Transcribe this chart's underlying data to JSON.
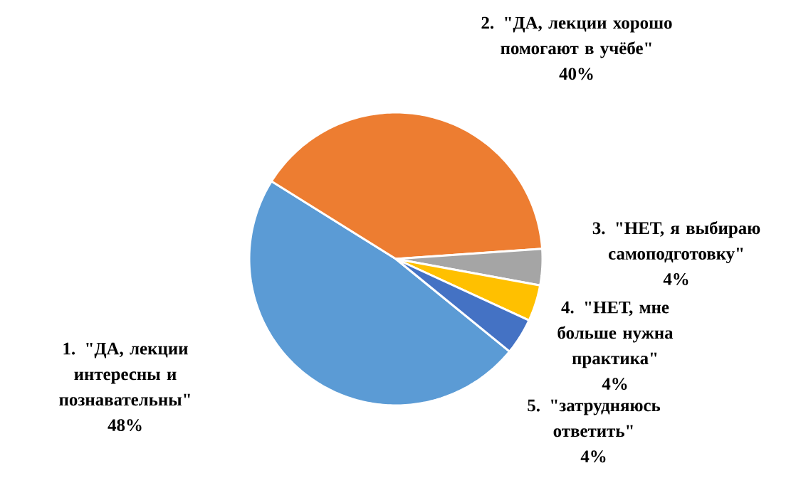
{
  "chart_data": {
    "type": "pie",
    "categories": [
      "1. \"ДА, лекции интересны и познавательны\"",
      "2. \"ДА, лекции хорошо помогают в учёбе\"",
      "3. \"НЕТ, я выбираю самоподготовку\"",
      "4. \"НЕТ, мне больше нужна практика\"",
      "5. \"затрудняюсь ответить\""
    ],
    "values": [
      48,
      40,
      4,
      4,
      4
    ],
    "value_labels": [
      "48%",
      "40%",
      "4%",
      "4%",
      "4%"
    ],
    "colors": [
      "#5b9bd5",
      "#ed7d31",
      "#a5a5a5",
      "#ffc000",
      "#4472c4"
    ]
  }
}
